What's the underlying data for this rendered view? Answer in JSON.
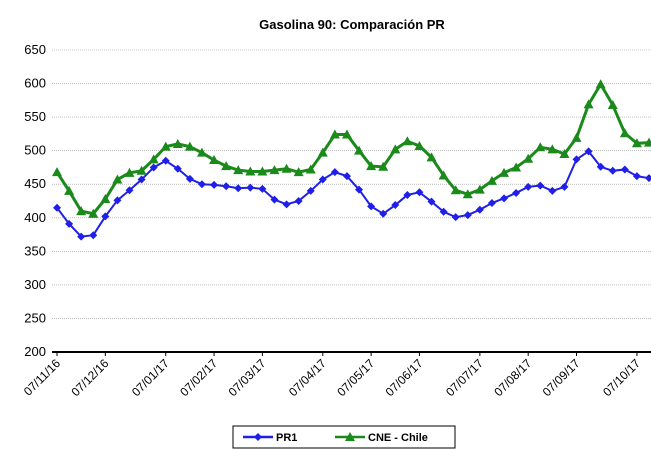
{
  "chart_data": {
    "type": "line",
    "title": "Gasolina 90: Comparación PR",
    "categories": [
      "07/11/16",
      null,
      null,
      null,
      "07/12/16",
      null,
      null,
      null,
      null,
      "07/01/17",
      null,
      null,
      null,
      "07/02/17",
      null,
      null,
      null,
      "07/03/17",
      null,
      null,
      null,
      null,
      "07/04/17",
      null,
      null,
      null,
      "07/05/17",
      null,
      null,
      null,
      "07/06/17",
      null,
      null,
      null,
      null,
      "07/07/17",
      null,
      null,
      null,
      "07/08/17",
      null,
      null,
      null,
      "07/09/17",
      null,
      null,
      null,
      null,
      "07/10/17",
      null
    ],
    "series": [
      {
        "name": "PR1",
        "color": "#1f1fe8",
        "marker": "diamond",
        "values": [
          415,
          391,
          372,
          374,
          402,
          426,
          441,
          457,
          475,
          485,
          473,
          458,
          450,
          449,
          447,
          444,
          445,
          443,
          427,
          420,
          425,
          440,
          457,
          468,
          462,
          442,
          417,
          406,
          419,
          434,
          438,
          424,
          409,
          401,
          404,
          412,
          422,
          429,
          437,
          446,
          448,
          440,
          446,
          487,
          499,
          476,
          470,
          472,
          462,
          459
        ]
      },
      {
        "name": "CNE - Chile",
        "color": "#1a8a1a",
        "marker": "triangle",
        "values": [
          468,
          440,
          410,
          406,
          428,
          457,
          467,
          470,
          487,
          506,
          510,
          506,
          497,
          486,
          477,
          471,
          469,
          469,
          471,
          473,
          468,
          472,
          497,
          524,
          524,
          500,
          477,
          476,
          502,
          514,
          507,
          490,
          463,
          441,
          435,
          442,
          455,
          467,
          475,
          488,
          505,
          502,
          495,
          519,
          569,
          599,
          568,
          526,
          511,
          512
        ]
      }
    ],
    "ylim": [
      200,
      650
    ],
    "yticks": [
      200,
      250,
      300,
      350,
      400,
      450,
      500,
      550,
      600,
      650
    ],
    "grid": true,
    "legend": "bottom"
  }
}
